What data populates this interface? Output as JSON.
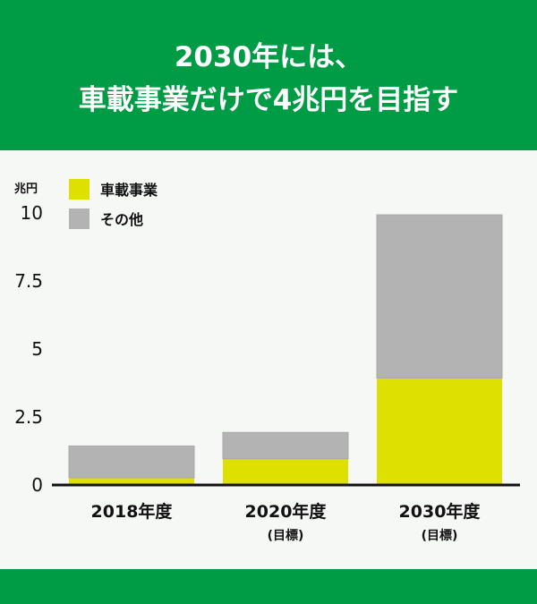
{
  "header": {
    "line1": "2030年には、",
    "line2": "車載事業だけで4兆円を目指す"
  },
  "colors": {
    "brand": "#009b45",
    "automotive": "#dde000",
    "other": "#b3b3b3"
  },
  "chart_data": {
    "type": "bar",
    "stacked": true,
    "title": "2030年には、車載事業だけで4兆円を目指す",
    "ylabel": "兆円",
    "ylim": [
      0,
      10
    ],
    "yticks": [
      "0",
      "2.5",
      "5",
      "7.5",
      "10"
    ],
    "ytick_values": [
      0,
      2.5,
      5,
      7.5,
      10
    ],
    "categories": [
      "2018年度",
      "2020年度",
      "2030年度"
    ],
    "category_notes": [
      "",
      "(目標)",
      "(目標)"
    ],
    "legend_position": "top-left",
    "series": [
      {
        "name": "車載事業",
        "color": "#dde000",
        "values": [
          0.23,
          0.93,
          3.9
        ]
      },
      {
        "name": "その他",
        "color": "#b3b3b3",
        "values": [
          1.17,
          0.97,
          6.0
        ]
      }
    ]
  }
}
